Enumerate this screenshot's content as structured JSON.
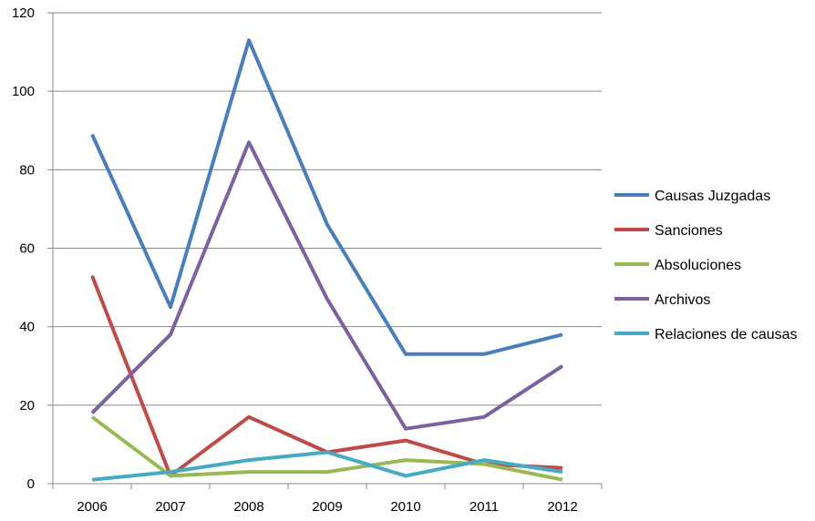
{
  "chart_data": {
    "type": "line",
    "title": "",
    "xlabel": "",
    "ylabel": "",
    "categories": [
      "2006",
      "2007",
      "2008",
      "2009",
      "2010",
      "2011",
      "2012"
    ],
    "ylim": [
      0,
      120
    ],
    "yticks": [
      0,
      20,
      40,
      60,
      80,
      100,
      120
    ],
    "ytick_labels": [
      "0",
      "20",
      "40",
      "60",
      "80",
      "100",
      "120"
    ],
    "grid": "horizontal",
    "legend_position": "right",
    "series": [
      {
        "name": "Causas Juzgadas",
        "color": "#4a7ebb",
        "values": [
          89,
          45,
          113,
          66,
          33,
          33,
          38
        ]
      },
      {
        "name": "Sanciones",
        "color": "#be4b48",
        "values": [
          53,
          2,
          17,
          8,
          11,
          5,
          4
        ]
      },
      {
        "name": "Absoluciones",
        "color": "#98b954",
        "values": [
          17,
          2,
          3,
          3,
          6,
          5,
          1
        ]
      },
      {
        "name": "Archivos",
        "color": "#7d60a0",
        "values": [
          18,
          38,
          87,
          47,
          14,
          17,
          30
        ]
      },
      {
        "name": "Relaciones de causas",
        "color": "#46aac5",
        "values": [
          1,
          3,
          6,
          8,
          2,
          6,
          3
        ]
      }
    ]
  }
}
